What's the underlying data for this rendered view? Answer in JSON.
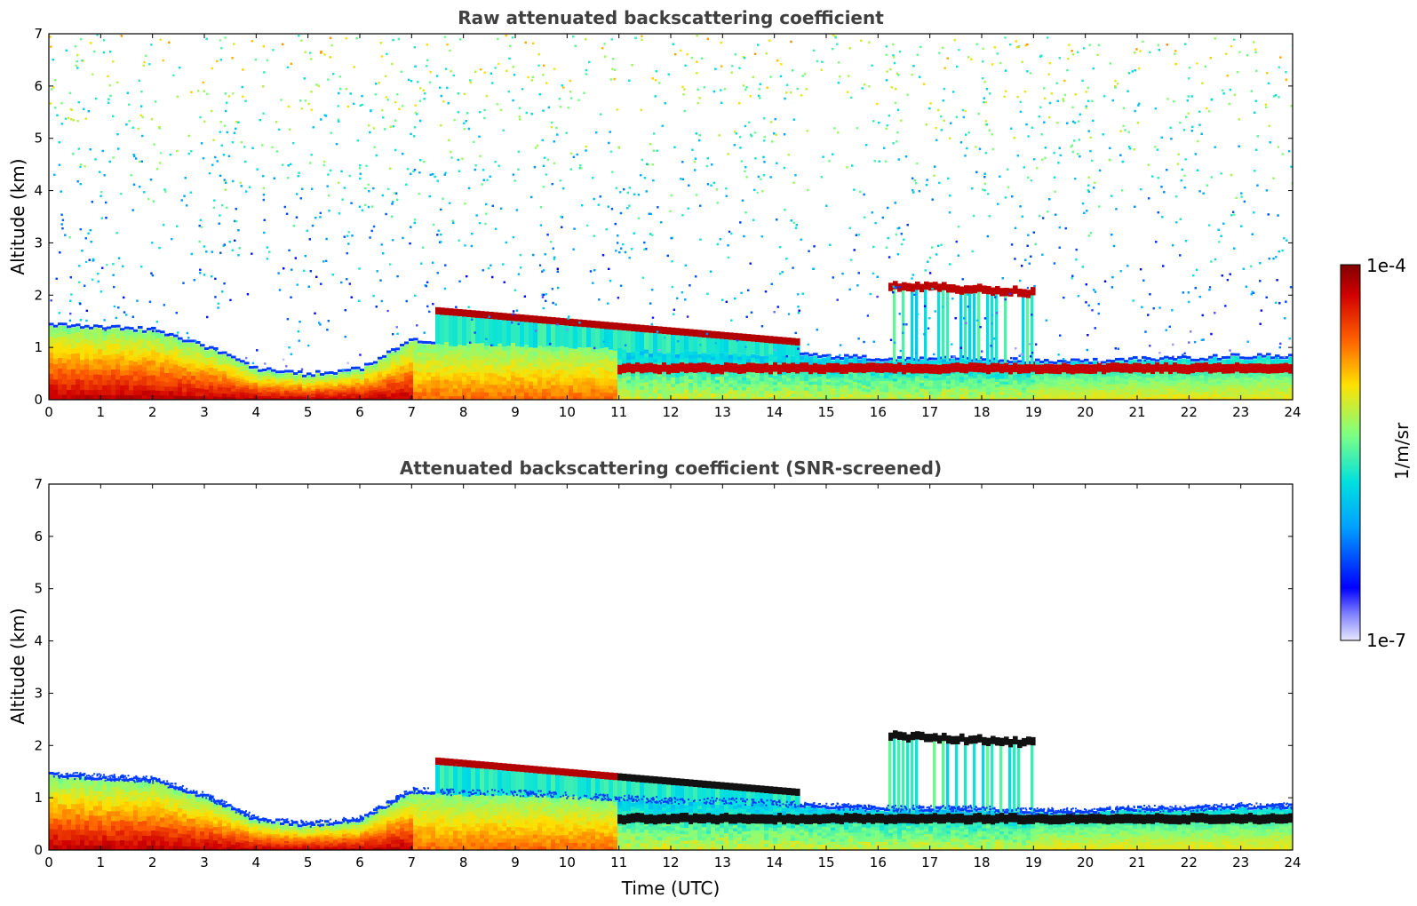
{
  "chart_data": [
    {
      "type": "heatmap",
      "title": "Raw attenuated backscattering coefficient",
      "xlabel": "",
      "ylabel": "Altitude (km)",
      "xlim": [
        0,
        24
      ],
      "ylim": [
        0,
        7
      ],
      "xticks": [
        0,
        1,
        2,
        3,
        4,
        5,
        6,
        7,
        8,
        9,
        10,
        11,
        12,
        13,
        14,
        15,
        16,
        17,
        18,
        19,
        20,
        21,
        22,
        23,
        24
      ],
      "yticks": [
        0,
        1,
        2,
        3,
        4,
        5,
        6,
        7
      ],
      "screened": false,
      "features": [
        {
          "name": "boundary layer aerosol",
          "time_start": 0,
          "time_end": 24,
          "top_km_by_hour": [
            1.4,
            1.35,
            1.3,
            1.0,
            0.55,
            0.45,
            0.55,
            1.1,
            1.05,
            1.05,
            1.0,
            0.95,
            0.9,
            0.9,
            0.85,
            0.8,
            0.75,
            0.75,
            0.75,
            0.7,
            0.7,
            0.75,
            0.75,
            0.8,
            0.8
          ]
        },
        {
          "name": "cloud layer",
          "time_start": 7.5,
          "time_end": 14.5,
          "base_km_start": 1.0,
          "base_km_end": 1.05,
          "top_km_start": 1.75,
          "top_km_end": 1.15
        },
        {
          "name": "cloud layer",
          "time_start": 16.2,
          "time_end": 19.0,
          "altitude_km": 2.2
        },
        {
          "name": "low cloud layer",
          "time_start": 11,
          "time_end": 24,
          "altitude_km": 0.6
        }
      ]
    },
    {
      "type": "heatmap",
      "title": "Attenuated backscattering coefficient (SNR-screened)",
      "xlabel": "Time (UTC)",
      "ylabel": "Altitude (km)",
      "xlim": [
        0,
        24
      ],
      "ylim": [
        0,
        7
      ],
      "xticks": [
        0,
        1,
        2,
        3,
        4,
        5,
        6,
        7,
        8,
        9,
        10,
        11,
        12,
        13,
        14,
        15,
        16,
        17,
        18,
        19,
        20,
        21,
        22,
        23,
        24
      ],
      "yticks": [
        0,
        1,
        2,
        3,
        4,
        5,
        6,
        7
      ],
      "screened": true
    }
  ],
  "colorbar": {
    "label": "1/m/sr",
    "max_label": "1e-4",
    "min_label": "1e-7",
    "colormap": "jet",
    "colors": [
      "#e8e8ff",
      "#0000ff",
      "#00d0ff",
      "#40ffc0",
      "#c0ff40",
      "#ffd000",
      "#ff4000",
      "#800000"
    ]
  }
}
